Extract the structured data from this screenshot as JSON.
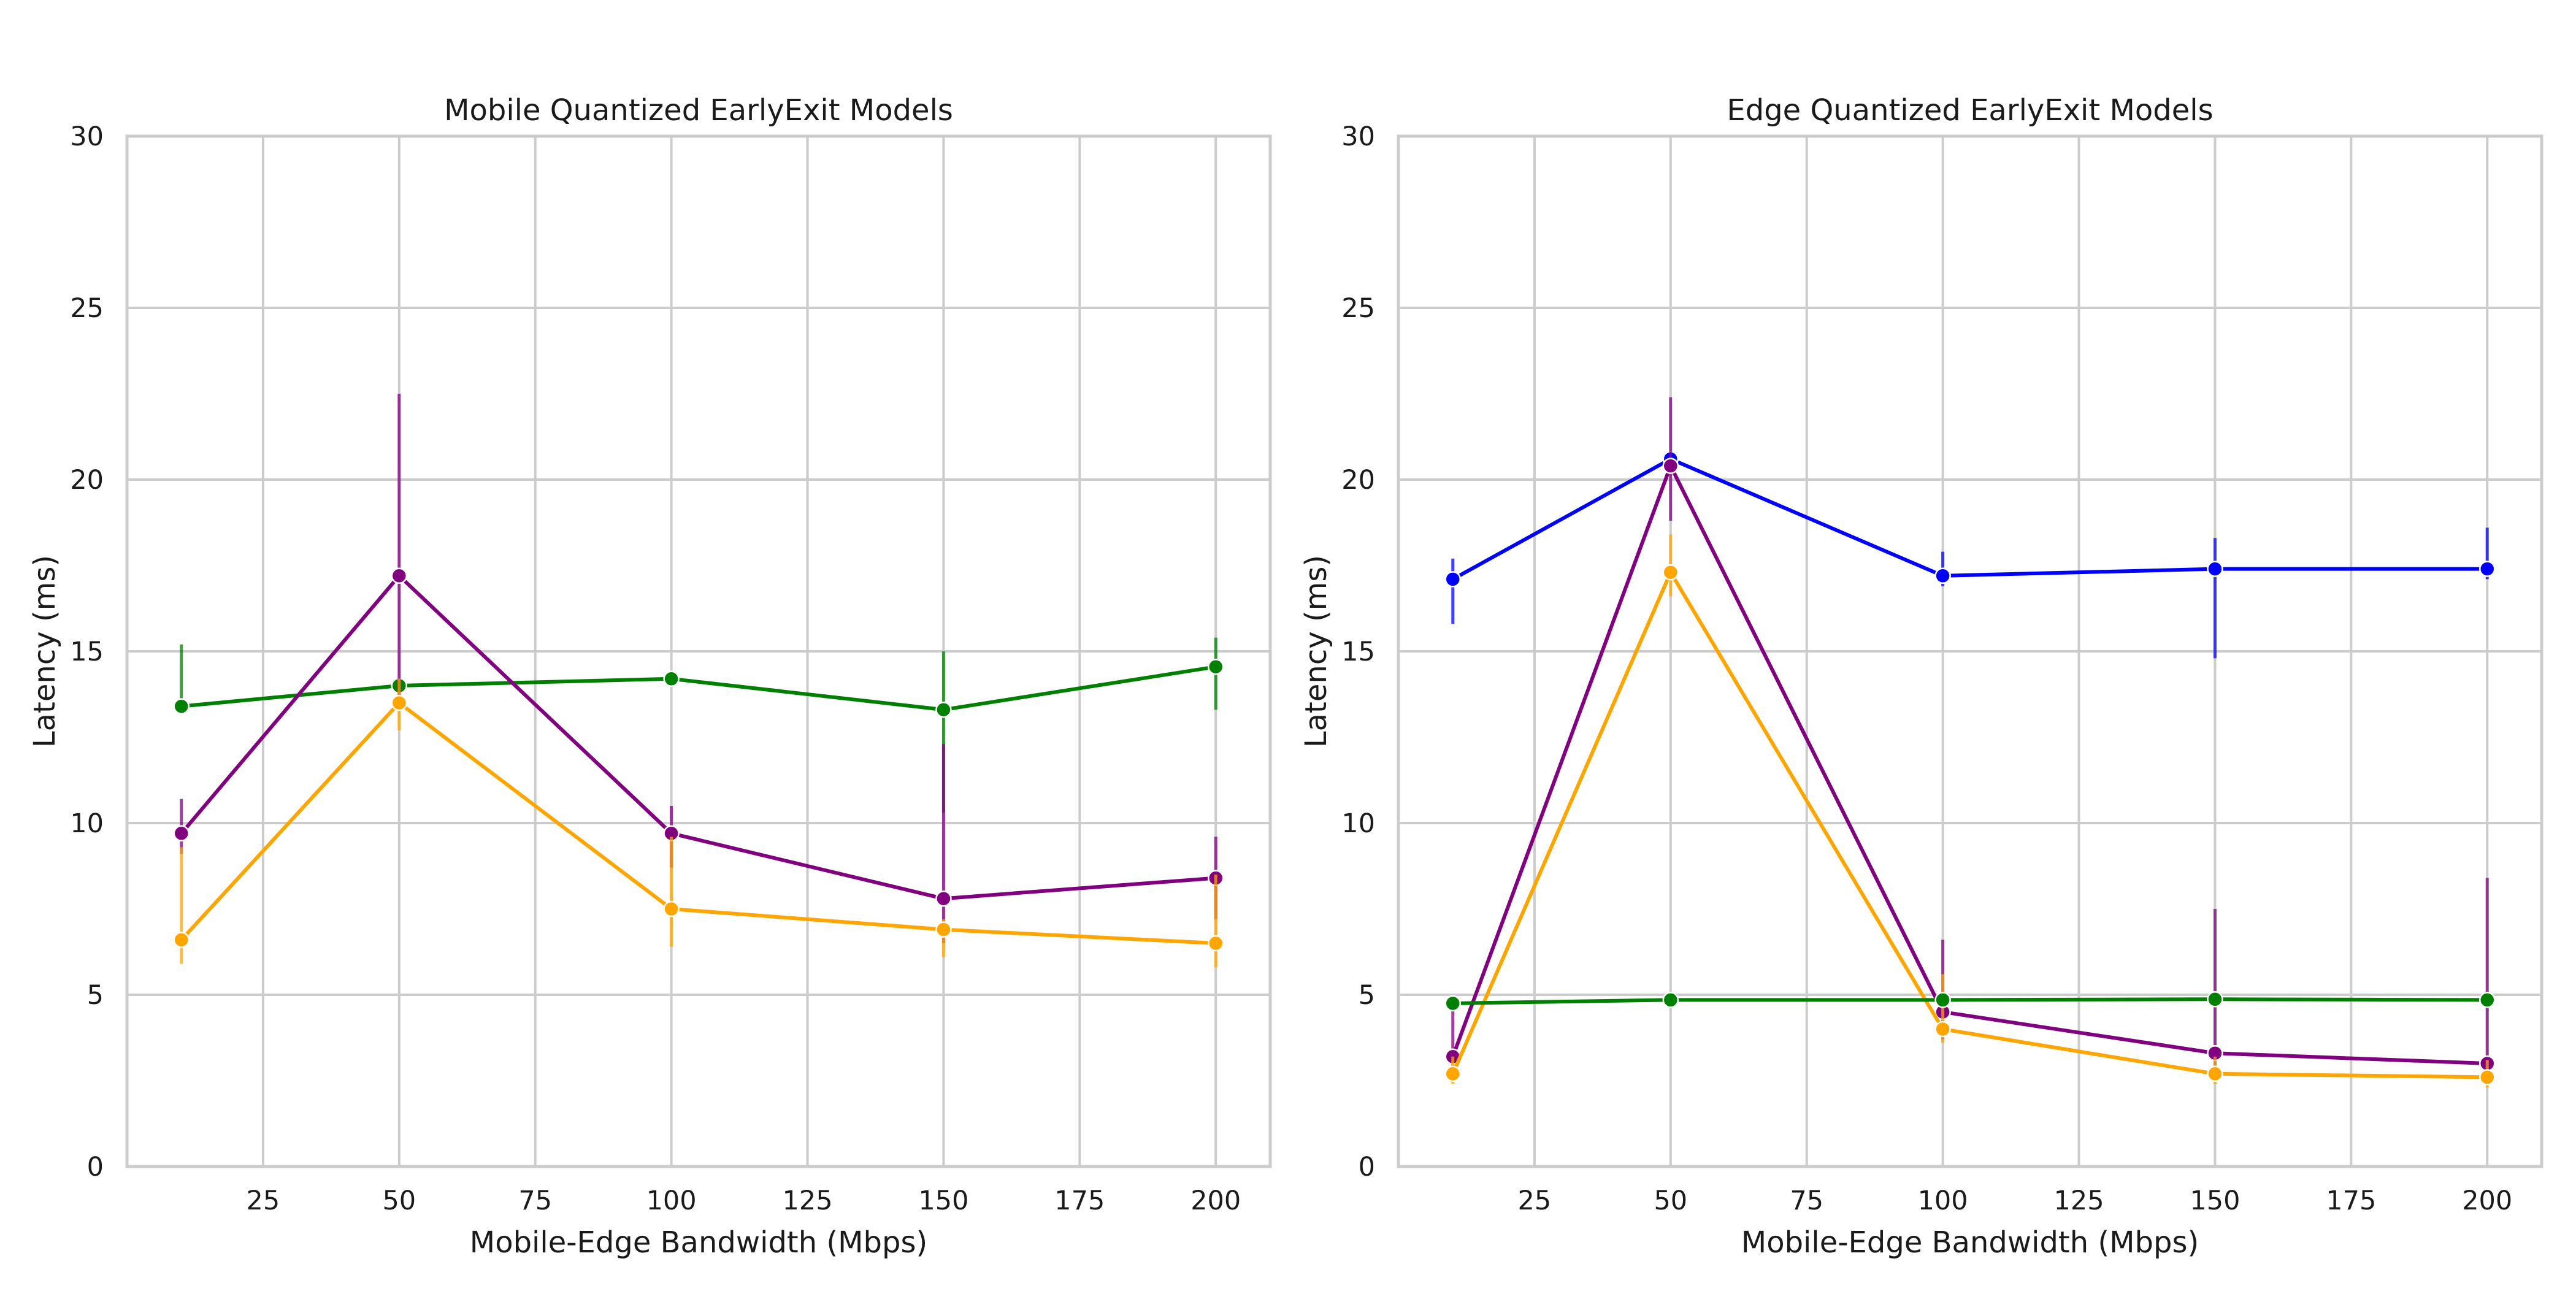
{
  "figure": {
    "background": "#ffffff"
  },
  "style": {
    "grid_color": "#cccccc",
    "spine_color": "#cccccc",
    "text_color": "#1a1a1a"
  },
  "chart_data": [
    {
      "type": "line",
      "title": "Mobile Quantized EarlyExit Models",
      "xlabel": "Mobile-Edge Bandwidth (Mbps)",
      "ylabel": "Latency (ms)",
      "xlim": [
        0,
        210
      ],
      "ylim": [
        0,
        30
      ],
      "xticks": [
        25,
        50,
        75,
        100,
        125,
        150,
        175,
        200
      ],
      "yticks": [
        0,
        5,
        10,
        15,
        20,
        25,
        30
      ],
      "grid": true,
      "legend": "none",
      "x": [
        10,
        50,
        100,
        150,
        200
      ],
      "series": [
        {
          "color": "#008000",
          "values": [
            13.4,
            14.0,
            14.2,
            13.3,
            14.55
          ],
          "err_low": [
            13.2,
            13.7,
            14.0,
            10.3,
            13.3
          ],
          "err_high": [
            15.2,
            14.2,
            14.4,
            15.0,
            15.4
          ]
        },
        {
          "color": "#800080",
          "values": [
            9.7,
            17.2,
            9.7,
            7.8,
            8.4
          ],
          "err_low": [
            9.1,
            13.7,
            8.7,
            6.5,
            7.2
          ],
          "err_high": [
            10.7,
            22.5,
            10.5,
            12.3,
            9.6
          ]
        },
        {
          "color": "#FFA500",
          "values": [
            6.6,
            13.5,
            7.5,
            6.9,
            6.5
          ],
          "err_low": [
            5.9,
            12.7,
            6.4,
            6.1,
            5.8
          ],
          "err_high": [
            9.3,
            14.2,
            9.6,
            7.2,
            8.5
          ]
        }
      ]
    },
    {
      "type": "line",
      "title": "Edge Quantized EarlyExit Models",
      "xlabel": "Mobile-Edge Bandwidth (Mbps)",
      "ylabel": "Latency (ms)",
      "xlim": [
        0,
        210
      ],
      "ylim": [
        0,
        30
      ],
      "xticks": [
        25,
        50,
        75,
        100,
        125,
        150,
        175,
        200
      ],
      "yticks": [
        0,
        5,
        10,
        15,
        20,
        25,
        30
      ],
      "grid": true,
      "legend": "none",
      "x": [
        10,
        50,
        100,
        150,
        200
      ],
      "series": [
        {
          "color": "#0000FF",
          "values": [
            17.1,
            20.6,
            17.2,
            17.4,
            17.4
          ],
          "err_low": [
            15.8,
            20.3,
            16.9,
            14.8,
            17.1
          ],
          "err_high": [
            17.7,
            20.8,
            17.9,
            18.3,
            18.6
          ]
        },
        {
          "color": "#800080",
          "values": [
            3.2,
            20.4,
            4.5,
            3.3,
            3.0
          ],
          "err_low": [
            2.6,
            18.8,
            3.7,
            2.7,
            2.4
          ],
          "err_high": [
            4.8,
            22.4,
            6.6,
            7.5,
            8.4
          ]
        },
        {
          "color": "#FFA500",
          "values": [
            2.7,
            17.3,
            4.0,
            2.7,
            2.6
          ],
          "err_low": [
            2.4,
            16.6,
            3.6,
            2.4,
            2.3
          ],
          "err_high": [
            3.2,
            18.4,
            5.6,
            3.2,
            3.1
          ]
        },
        {
          "color": "#008000",
          "values": [
            4.75,
            4.85,
            4.85,
            4.87,
            4.85
          ],
          "err_low": [
            4.6,
            4.75,
            4.7,
            4.75,
            4.75
          ],
          "err_high": [
            4.9,
            4.95,
            5.0,
            5.0,
            4.95
          ]
        }
      ]
    }
  ]
}
